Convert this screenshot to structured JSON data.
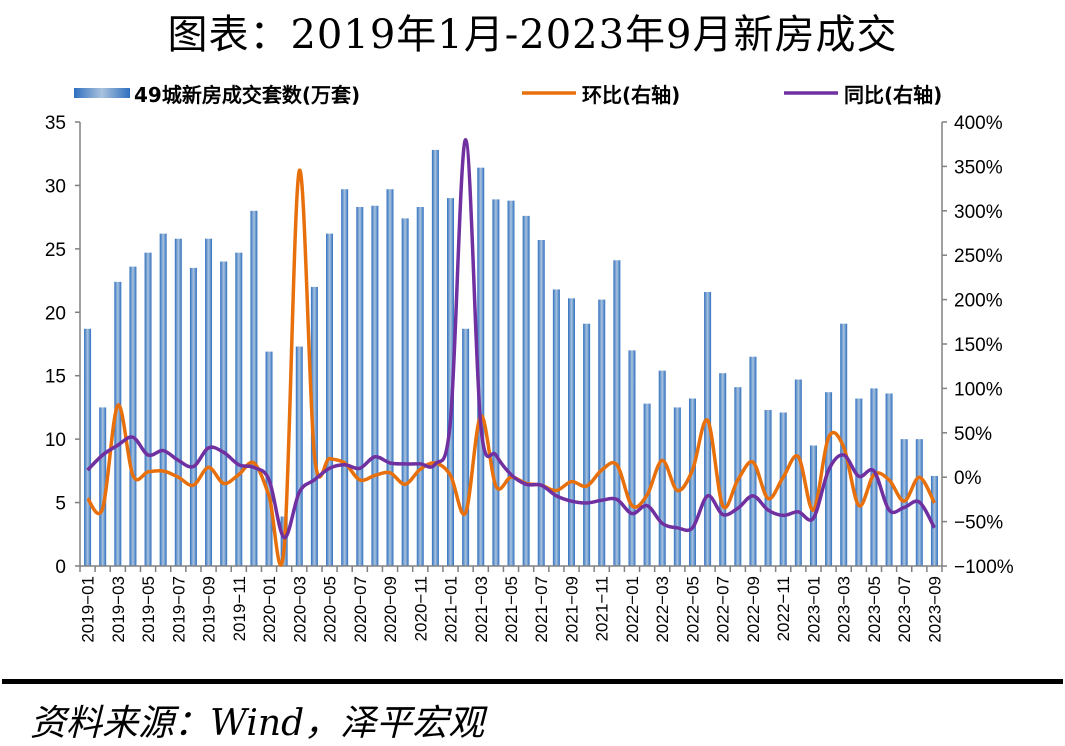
{
  "title": "图表：2019年1月-2023年9月新房成交",
  "source": "资料来源：Wind，泽平宏观",
  "chart_data": {
    "type": "bar+line",
    "title": "图表：2019年1月-2023年9月新房成交",
    "categories": [
      "2019-01",
      "2019-02",
      "2019-03",
      "2019-04",
      "2019-05",
      "2019-06",
      "2019-07",
      "2019-08",
      "2019-09",
      "2019-10",
      "2019-11",
      "2019-12",
      "2020-01",
      "2020-02",
      "2020-03",
      "2020-04",
      "2020-05",
      "2020-06",
      "2020-07",
      "2020-08",
      "2020-09",
      "2020-10",
      "2020-11",
      "2020-12",
      "2021-01",
      "2021-02",
      "2021-03",
      "2021-04",
      "2021-05",
      "2021-06",
      "2021-07",
      "2021-08",
      "2021-09",
      "2021-10",
      "2021-11",
      "2021-12",
      "2022-01",
      "2022-02",
      "2022-03",
      "2022-04",
      "2022-05",
      "2022-06",
      "2022-07",
      "2022-08",
      "2022-09",
      "2022-10",
      "2022-11",
      "2022-12",
      "2023-01",
      "2023-02",
      "2023-03",
      "2023-04",
      "2023-05",
      "2023-06",
      "2023-07",
      "2023-08",
      "2023-09"
    ],
    "series": [
      {
        "name": "49城新房成交套数(万套)",
        "type": "bar",
        "axis": "left",
        "color": "#4a86c5",
        "values": [
          18.7,
          12.5,
          22.4,
          23.6,
          24.7,
          26.2,
          25.8,
          23.5,
          25.8,
          24.0,
          24.7,
          28.0,
          16.9,
          3.9,
          17.3,
          22.0,
          26.2,
          29.7,
          28.3,
          28.4,
          29.7,
          27.4,
          28.3,
          32.8,
          29.0,
          18.7,
          31.4,
          28.9,
          28.8,
          27.6,
          25.7,
          21.8,
          21.1,
          19.1,
          21.0,
          24.1,
          17.0,
          12.8,
          15.4,
          12.5,
          13.2,
          21.6,
          15.2,
          14.1,
          16.5,
          12.3,
          12.1,
          14.7,
          9.5,
          13.7,
          19.1,
          13.2,
          14.0,
          13.6,
          10.0,
          10.0,
          7.1
        ]
      },
      {
        "name": "环比(右轴)",
        "type": "line",
        "axis": "right",
        "color": "#e8700c",
        "values": [
          -24,
          -35,
          81,
          2,
          6,
          7,
          0,
          -9,
          11,
          -7,
          3,
          16,
          -21,
          -80,
          345,
          25,
          21,
          16,
          -3,
          2,
          5,
          -8,
          9,
          16,
          2,
          -40,
          69,
          -10,
          0,
          -7,
          -9,
          -15,
          -5,
          -10,
          8,
          14,
          -32,
          -20,
          19,
          -15,
          8,
          64,
          -32,
          -3,
          17,
          -24,
          0,
          23,
          -37,
          45,
          34,
          -32,
          3,
          -3,
          -27,
          0,
          -29
        ]
      },
      {
        "name": "同比(右轴)",
        "type": "line",
        "axis": "right",
        "color": "#7030a0",
        "values": [
          8,
          25,
          36,
          45,
          25,
          30,
          19,
          12,
          33,
          28,
          14,
          11,
          -3,
          -68,
          -17,
          -3,
          10,
          14,
          10,
          23,
          16,
          15,
          15,
          15,
          64,
          380,
          59,
          25,
          3,
          -8,
          -9,
          -21,
          -27,
          -29,
          -26,
          -25,
          -41,
          -32,
          -52,
          -57,
          -57,
          -21,
          -42,
          -35,
          -21,
          -37,
          -43,
          -39,
          -46,
          8,
          25,
          1,
          7,
          -37,
          -34,
          -28,
          -57
        ]
      }
    ],
    "left_axis": {
      "min": 0,
      "max": 35,
      "ticks": [
        "0",
        "5",
        "10",
        "15",
        "20",
        "25",
        "30",
        "35"
      ]
    },
    "right_axis": {
      "min": -100,
      "max": 400,
      "ticks": [
        "-100%",
        "-50%",
        "0%",
        "50%",
        "100%",
        "150%",
        "200%",
        "250%",
        "300%",
        "350%",
        "400%"
      ]
    },
    "xlabel": "",
    "ylabel": "",
    "grid": false,
    "legend_position": "top"
  }
}
